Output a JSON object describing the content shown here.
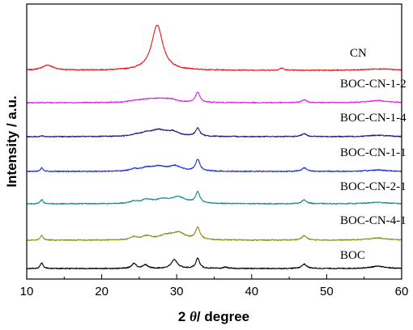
{
  "chart_data": {
    "type": "line",
    "title": "",
    "xlabel_main": "2 ",
    "xlabel_theta": "θ",
    "xlabel_rest": "/ degree",
    "ylabel": "Intensity / a.u.",
    "xlim": [
      10,
      60
    ],
    "xticks": [
      10,
      20,
      30,
      40,
      50,
      60
    ],
    "grid": false,
    "legend": "none",
    "peak_width_deg": 0.3,
    "series": [
      {
        "name": "CN",
        "color": "#e8141a",
        "baseline_intensity": 0,
        "peaks": [
          [
            12.8,
            7,
            0.9
          ],
          [
            27.4,
            62,
            0.9
          ],
          [
            44.0,
            3,
            0.3
          ],
          [
            57.0,
            2,
            2.0
          ]
        ]
      },
      {
        "name": "BOC-CN-1-2",
        "color": "#e020e0",
        "baseline_intensity": 0,
        "peaks": [
          [
            24.5,
            2,
            1.0
          ],
          [
            26.0,
            3,
            1.2
          ],
          [
            27.6,
            4,
            1.2
          ],
          [
            29.2,
            4,
            1.0
          ],
          [
            32.8,
            14,
            0.35
          ],
          [
            47.0,
            4,
            0.4
          ],
          [
            56.8,
            3,
            1.5
          ]
        ]
      },
      {
        "name": "BOC-CN-1-4",
        "color": "#1a1a7a",
        "baseline_intensity": 0,
        "peaks": [
          [
            12.0,
            1,
            0.2
          ],
          [
            24.5,
            2,
            0.8
          ],
          [
            26.0,
            4,
            0.9
          ],
          [
            27.6,
            8,
            1.2
          ],
          [
            29.5,
            6,
            1.0
          ],
          [
            32.8,
            11,
            0.35
          ],
          [
            47.0,
            4,
            0.4
          ],
          [
            56.8,
            2,
            1.5
          ]
        ]
      },
      {
        "name": "BOC-CN-1-1",
        "color": "#1a2ae0",
        "baseline_intensity": 0,
        "peaks": [
          [
            12.0,
            5,
            0.2
          ],
          [
            24.3,
            3,
            0.6
          ],
          [
            26.0,
            4,
            0.9
          ],
          [
            27.6,
            6,
            1.1
          ],
          [
            29.8,
            7,
            1.0
          ],
          [
            32.8,
            16,
            0.35
          ],
          [
            47.0,
            5,
            0.4
          ],
          [
            56.8,
            2,
            1.5
          ]
        ]
      },
      {
        "name": "BOC-CN-2-1",
        "color": "#1a8a8a",
        "baseline_intensity": 0,
        "peaks": [
          [
            12.0,
            6,
            0.2
          ],
          [
            24.3,
            3,
            0.6
          ],
          [
            26.0,
            5,
            0.8
          ],
          [
            28.0,
            5,
            1.0
          ],
          [
            30.2,
            9,
            1.2
          ],
          [
            32.8,
            15,
            0.35
          ],
          [
            47.0,
            5,
            0.4
          ],
          [
            56.8,
            2,
            1.5
          ]
        ]
      },
      {
        "name": "BOC-CN-4-1",
        "color": "#8a8a1a",
        "baseline_intensity": 0,
        "peaks": [
          [
            12.0,
            7,
            0.2
          ],
          [
            24.3,
            4,
            0.5
          ],
          [
            26.0,
            5,
            0.8
          ],
          [
            28.5,
            5,
            1.0
          ],
          [
            30.2,
            10,
            1.2
          ],
          [
            32.8,
            16,
            0.35
          ],
          [
            47.0,
            6,
            0.4
          ],
          [
            56.8,
            3,
            1.5
          ]
        ]
      },
      {
        "name": "BOC",
        "color": "#000000",
        "baseline_intensity": 0,
        "peaks": [
          [
            12.0,
            8,
            0.2
          ],
          [
            24.3,
            7,
            0.35
          ],
          [
            25.8,
            5,
            0.4
          ],
          [
            29.7,
            12,
            0.5
          ],
          [
            32.8,
            14,
            0.3
          ],
          [
            36.5,
            2,
            0.3
          ],
          [
            47.0,
            6,
            0.4
          ],
          [
            56.8,
            3,
            1.2
          ]
        ]
      }
    ]
  }
}
